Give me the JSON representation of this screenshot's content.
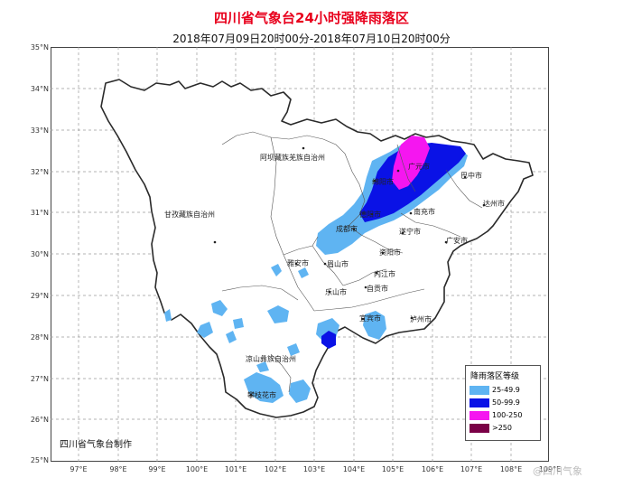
{
  "title": "四川省气象台24小时强降雨落区",
  "subtitle": "2018年07月09日20时00分-2018年07月10日20时00分",
  "axes": {
    "lat_labels": [
      "35°N",
      "34°N",
      "33°N",
      "32°N",
      "31°N",
      "30°N",
      "29°N",
      "28°N",
      "27°N",
      "26°N",
      "25°N"
    ],
    "lon_labels": [
      "97°E",
      "98°E",
      "99°E",
      "100°E",
      "101°E",
      "102°E",
      "103°E",
      "104°E",
      "105°E",
      "106°E",
      "107°E",
      "108°E",
      "109°E"
    ]
  },
  "places": [
    {
      "name": "阿坝藏族羌族自治州"
    },
    {
      "name": "甘孜藏族自治州"
    },
    {
      "name": "广元市"
    },
    {
      "name": "巴中市"
    },
    {
      "name": "达州市"
    },
    {
      "name": "绵阳市"
    },
    {
      "name": "德阳市"
    },
    {
      "name": "南充市"
    },
    {
      "name": "成都市"
    },
    {
      "name": "遂宁市"
    },
    {
      "name": "广安市"
    },
    {
      "name": "资阳市"
    },
    {
      "name": "雅安市"
    },
    {
      "name": "眉山市"
    },
    {
      "name": "内江市"
    },
    {
      "name": "乐山市"
    },
    {
      "name": "自贡市"
    },
    {
      "name": "宜宾市"
    },
    {
      "name": "泸州市"
    },
    {
      "name": "凉山彝族自治州"
    },
    {
      "name": "攀枝花市"
    }
  ],
  "legend": {
    "title": "降雨落区等级",
    "items": [
      {
        "label": "25-49.9",
        "color": "#5fb4f2"
      },
      {
        "label": "50-99.9",
        "color": "#0a12e6"
      },
      {
        "label": "100-250",
        "color": "#f516f0"
      },
      {
        "label": ">250",
        "color": "#7a0046"
      }
    ]
  },
  "producer": "四川省气象台制作",
  "watermark": "@四川气象",
  "colors": {
    "title": "#e8001c",
    "boundary": "#3a3a3a",
    "grid": "#9a9a9a"
  }
}
